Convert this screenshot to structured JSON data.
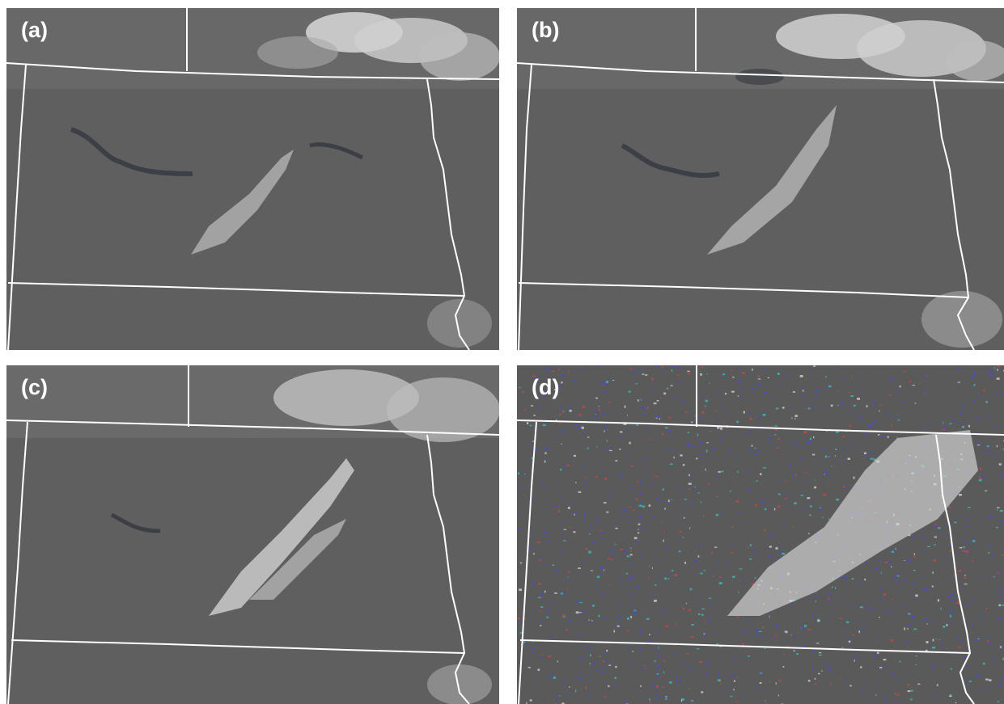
{
  "panels": [
    {
      "id": "a",
      "label": "(a)"
    },
    {
      "id": "b",
      "label": "(b)"
    },
    {
      "id": "c",
      "label": "(c)"
    },
    {
      "id": "d",
      "label": "(d)"
    }
  ],
  "colors": {
    "land": "#5f5f5f",
    "border": "#ffffff",
    "water": "#3c3f45",
    "cloud": "#d6d6d6",
    "snow-overlay-blue": "#4a4ad0",
    "overlay-red": "#c04848",
    "overlay-cyan": "#3fb8b8"
  }
}
